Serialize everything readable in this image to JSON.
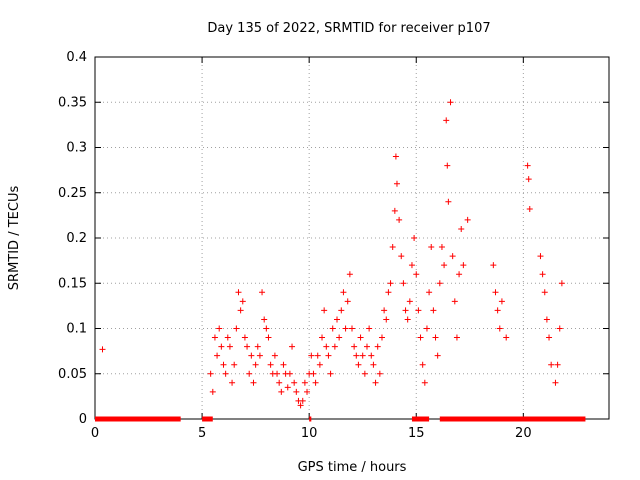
{
  "chart_data": {
    "type": "scatter",
    "title": "Day 135 of 2022, SRMTID for receiver p107",
    "xlabel": "GPS time / hours",
    "ylabel": "SRMTID / TECUs",
    "xlim": [
      0,
      24
    ],
    "ylim": [
      0,
      0.4
    ],
    "xticks": [
      0,
      5,
      10,
      15,
      20
    ],
    "yticks": [
      0,
      0.05,
      0.1,
      0.15,
      0.2,
      0.25,
      0.3,
      0.35,
      0.4
    ],
    "xtick_labels": [
      "0",
      "5",
      "10",
      "15",
      "20"
    ],
    "ytick_labels": [
      "0",
      "0.05",
      "0.1",
      "0.15",
      "0.2",
      "0.25",
      "0.3",
      "0.35",
      "0.4"
    ],
    "grid": true,
    "marker": "+",
    "series": [
      {
        "name": "SRMTID",
        "color": "#ff0000",
        "points": [
          [
            0.35,
            0.077
          ],
          [
            5.4,
            0.05
          ],
          [
            5.5,
            0.03
          ],
          [
            5.6,
            0.09
          ],
          [
            5.7,
            0.07
          ],
          [
            5.8,
            0.1
          ],
          [
            5.9,
            0.08
          ],
          [
            6.0,
            0.06
          ],
          [
            6.1,
            0.05
          ],
          [
            6.2,
            0.09
          ],
          [
            6.3,
            0.08
          ],
          [
            6.4,
            0.04
          ],
          [
            6.5,
            0.06
          ],
          [
            6.6,
            0.1
          ],
          [
            6.7,
            0.14
          ],
          [
            6.8,
            0.12
          ],
          [
            6.9,
            0.13
          ],
          [
            7.0,
            0.09
          ],
          [
            7.1,
            0.08
          ],
          [
            7.2,
            0.05
          ],
          [
            7.3,
            0.07
          ],
          [
            7.4,
            0.04
          ],
          [
            7.5,
            0.06
          ],
          [
            7.6,
            0.08
          ],
          [
            7.7,
            0.07
          ],
          [
            7.8,
            0.14
          ],
          [
            7.9,
            0.11
          ],
          [
            8.0,
            0.1
          ],
          [
            8.1,
            0.09
          ],
          [
            8.2,
            0.06
          ],
          [
            8.3,
            0.05
          ],
          [
            8.4,
            0.07
          ],
          [
            8.5,
            0.05
          ],
          [
            8.6,
            0.04
          ],
          [
            8.7,
            0.03
          ],
          [
            8.8,
            0.06
          ],
          [
            8.9,
            0.05
          ],
          [
            9.0,
            0.035
          ],
          [
            9.1,
            0.05
          ],
          [
            9.2,
            0.08
          ],
          [
            9.3,
            0.04
          ],
          [
            9.4,
            0.03
          ],
          [
            9.5,
            0.02
          ],
          [
            9.6,
            0.015
          ],
          [
            9.7,
            0.02
          ],
          [
            9.8,
            0.04
          ],
          [
            9.9,
            0.03
          ],
          [
            10.0,
            0.05
          ],
          [
            10.1,
            0.07
          ],
          [
            10.2,
            0.05
          ],
          [
            10.3,
            0.04
          ],
          [
            10.4,
            0.07
          ],
          [
            10.5,
            0.06
          ],
          [
            10.6,
            0.09
          ],
          [
            10.7,
            0.12
          ],
          [
            10.8,
            0.08
          ],
          [
            10.9,
            0.07
          ],
          [
            11.0,
            0.05
          ],
          [
            11.1,
            0.1
          ],
          [
            11.2,
            0.08
          ],
          [
            11.3,
            0.11
          ],
          [
            11.4,
            0.09
          ],
          [
            11.5,
            0.12
          ],
          [
            11.6,
            0.14
          ],
          [
            11.7,
            0.1
          ],
          [
            11.8,
            0.13
          ],
          [
            11.9,
            0.16
          ],
          [
            12.0,
            0.1
          ],
          [
            12.1,
            0.08
          ],
          [
            12.2,
            0.07
          ],
          [
            12.3,
            0.06
          ],
          [
            12.4,
            0.09
          ],
          [
            12.5,
            0.07
          ],
          [
            12.6,
            0.05
          ],
          [
            12.7,
            0.08
          ],
          [
            12.8,
            0.1
          ],
          [
            12.9,
            0.07
          ],
          [
            13.0,
            0.06
          ],
          [
            13.1,
            0.04
          ],
          [
            13.2,
            0.08
          ],
          [
            13.3,
            0.05
          ],
          [
            13.4,
            0.09
          ],
          [
            13.5,
            0.12
          ],
          [
            13.6,
            0.11
          ],
          [
            13.7,
            0.14
          ],
          [
            13.8,
            0.15
          ],
          [
            13.9,
            0.19
          ],
          [
            14.0,
            0.23
          ],
          [
            14.05,
            0.29
          ],
          [
            14.1,
            0.26
          ],
          [
            14.2,
            0.22
          ],
          [
            14.3,
            0.18
          ],
          [
            14.4,
            0.15
          ],
          [
            14.5,
            0.12
          ],
          [
            14.6,
            0.11
          ],
          [
            14.7,
            0.13
          ],
          [
            14.8,
            0.17
          ],
          [
            14.9,
            0.2
          ],
          [
            15.0,
            0.16
          ],
          [
            15.1,
            0.12
          ],
          [
            15.2,
            0.09
          ],
          [
            15.3,
            0.06
          ],
          [
            15.4,
            0.04
          ],
          [
            15.5,
            0.1
          ],
          [
            15.6,
            0.14
          ],
          [
            15.7,
            0.19
          ],
          [
            15.8,
            0.12
          ],
          [
            15.9,
            0.09
          ],
          [
            16.0,
            0.07
          ],
          [
            16.1,
            0.15
          ],
          [
            16.2,
            0.19
          ],
          [
            16.3,
            0.17
          ],
          [
            16.4,
            0.33
          ],
          [
            16.45,
            0.28
          ],
          [
            16.5,
            0.24
          ],
          [
            16.6,
            0.35
          ],
          [
            16.7,
            0.18
          ],
          [
            16.8,
            0.13
          ],
          [
            16.9,
            0.09
          ],
          [
            17.0,
            0.16
          ],
          [
            17.1,
            0.21
          ],
          [
            17.2,
            0.17
          ],
          [
            17.4,
            0.22
          ],
          [
            18.6,
            0.17
          ],
          [
            18.7,
            0.14
          ],
          [
            18.8,
            0.12
          ],
          [
            18.9,
            0.1
          ],
          [
            19.0,
            0.13
          ],
          [
            19.2,
            0.09
          ],
          [
            20.2,
            0.28
          ],
          [
            20.25,
            0.265
          ],
          [
            20.3,
            0.232
          ],
          [
            20.8,
            0.18
          ],
          [
            20.9,
            0.16
          ],
          [
            21.0,
            0.14
          ],
          [
            21.1,
            0.11
          ],
          [
            21.2,
            0.09
          ],
          [
            21.3,
            0.06
          ],
          [
            21.5,
            0.04
          ],
          [
            21.6,
            0.06
          ],
          [
            21.7,
            0.1
          ],
          [
            21.8,
            0.15
          ]
        ],
        "zero_runs": [
          [
            0.0,
            4.0
          ],
          [
            5.0,
            5.5
          ],
          [
            10.0,
            10.1
          ],
          [
            14.8,
            15.6
          ],
          [
            16.1,
            22.9
          ]
        ]
      }
    ]
  }
}
